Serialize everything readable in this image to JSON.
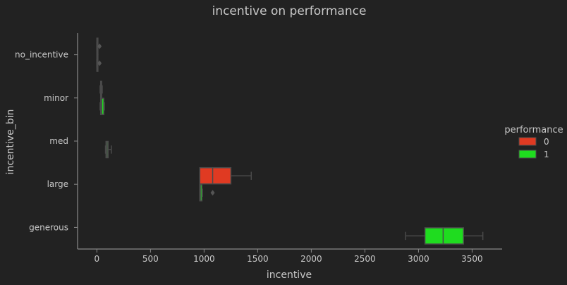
{
  "chart_data": {
    "type": "boxplot",
    "orientation": "horizontal",
    "title": "incentive on performance",
    "xlabel": "incentive",
    "ylabel": "incentive_bin",
    "xlim": [
      -180,
      3780
    ],
    "xticks": [
      0,
      500,
      1000,
      1500,
      2000,
      2500,
      3000,
      3500
    ],
    "categories": [
      "no_incentive",
      "minor",
      "med",
      "large",
      "generous"
    ],
    "legend": {
      "title": "performance",
      "placement": "right"
    },
    "series": [
      {
        "name": "0",
        "color": "#e03a22",
        "boxes": [
          {
            "category": "no_incentive",
            "min": 0,
            "q1": 0,
            "median": 0,
            "q3": 0,
            "max": 0,
            "outliers": [
              25
            ]
          },
          {
            "category": "minor",
            "min": 30,
            "q1": 35,
            "median": 40,
            "q3": 45,
            "max": 50,
            "outliers": []
          },
          {
            "category": "med",
            "min": null,
            "q1": null,
            "median": null,
            "q3": null,
            "max": null,
            "outliers": []
          },
          {
            "category": "large",
            "min": 960,
            "q1": 960,
            "median": 1080,
            "q3": 1250,
            "max": 1440,
            "outliers": []
          },
          {
            "category": "generous",
            "min": null,
            "q1": null,
            "median": null,
            "q3": null,
            "max": null,
            "outliers": []
          }
        ]
      },
      {
        "name": "1",
        "color": "#1fdc1f",
        "boxes": [
          {
            "category": "no_incentive",
            "min": 0,
            "q1": 0,
            "median": 0,
            "q3": 0,
            "max": 0,
            "outliers": [
              25
            ]
          },
          {
            "category": "minor",
            "min": 30,
            "q1": 35,
            "median": 45,
            "q3": 65,
            "max": 70,
            "outliers": []
          },
          {
            "category": "med",
            "min": 80,
            "q1": 85,
            "median": 95,
            "q3": 105,
            "max": 135,
            "outliers": []
          },
          {
            "category": "large",
            "min": 960,
            "q1": 960,
            "median": 965,
            "q3": 980,
            "max": 985,
            "outliers": [
              1080
            ]
          },
          {
            "category": "generous",
            "min": 2880,
            "q1": 3060,
            "median": 3230,
            "q3": 3420,
            "max": 3600,
            "outliers": []
          }
        ]
      }
    ],
    "colors": {
      "background": "#222222",
      "axis": "#8a8a8a",
      "text": "#c8c8c8",
      "whisker": "#4a4a4a"
    }
  }
}
